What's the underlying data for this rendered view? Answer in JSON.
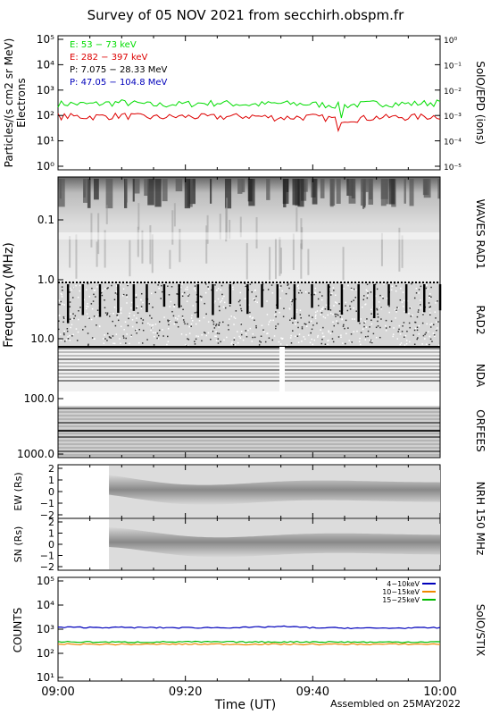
{
  "title": "Survey of 05 NOV 2021 from secchirh.obspm.fr",
  "footer": "Assembled on 25MAY2022",
  "xlabel": "Time (UT)",
  "x_ticks": [
    "09:00",
    "09:20",
    "09:40",
    "10:00"
  ],
  "colors": {
    "green": "#00dd00",
    "red": "#dd0000",
    "blue": "#0000bb",
    "orange": "#ee8800",
    "black": "#000000"
  },
  "chart_data": [
    {
      "panel": "SolO/EPD",
      "type": "line",
      "ylabel": "Particles/(s cm2 sr MeV)",
      "ylabel2": "Electrons",
      "right_title": "SolO/EPD (ions)",
      "yscale": "log",
      "ylim": [
        1,
        100000
      ],
      "y2lim": [
        1e-05,
        1
      ],
      "y_ticks": [
        "10⁰",
        "10¹",
        "10²",
        "10³",
        "10⁴",
        "10⁵"
      ],
      "y2_ticks": [
        "10⁻⁵",
        "10⁻⁴",
        "10⁻³",
        "10⁻²",
        "10⁻¹",
        "10⁰"
      ],
      "legend": [
        {
          "label": "E: 53 − 73 keV",
          "color": "#00dd00"
        },
        {
          "label": "E: 282 − 397 keV",
          "color": "#dd0000"
        },
        {
          "label": "P: 7.075 − 28.33 MeV",
          "color": "#000000"
        },
        {
          "label": "P: 47.05 − 104.8 MeV",
          "color": "#0000bb"
        }
      ],
      "series": [
        {
          "name": "E: 53 − 73 keV",
          "color": "#00dd00",
          "x": [
            0,
            5,
            10,
            15,
            20,
            25,
            30,
            35,
            40,
            45,
            50,
            55,
            60
          ],
          "y": [
            300,
            280,
            330,
            260,
            290,
            320,
            270,
            300,
            280,
            250,
            310,
            290,
            330
          ]
        },
        {
          "name": "E: 282 − 397 keV",
          "color": "#dd0000",
          "x": [
            0,
            5,
            10,
            15,
            20,
            25,
            30,
            35,
            40,
            45,
            50,
            55,
            60
          ],
          "y": [
            95,
            90,
            100,
            85,
            92,
            88,
            96,
            82,
            90,
            70,
            85,
            88,
            95
          ]
        }
      ]
    },
    {
      "panel": "Radio spectrogram",
      "type": "heatmap",
      "ylabel": "Frequency (MHz)",
      "yscale": "log",
      "y_ticks": [
        "0.1",
        "1.0",
        "10.0",
        "100.0",
        "1000.0"
      ],
      "instruments": [
        "WAVES RAD1",
        "RAD2",
        "NDA",
        "ORFEES"
      ]
    },
    {
      "panel": "NRH 150 MHz EW",
      "type": "heatmap",
      "ylabel": "EW (Rs)",
      "ylim": [
        -2,
        2
      ],
      "y_ticks": [
        "2",
        "1",
        "0",
        "−1",
        "−2"
      ],
      "right_title": "NRH 150 MHz",
      "data_start_minutes": 8
    },
    {
      "panel": "NRH 150 MHz SN",
      "type": "heatmap",
      "ylabel": "SN (Rs)",
      "ylim": [
        -2,
        2
      ],
      "y_ticks": [
        "2",
        "1",
        "0",
        "−1",
        "−2"
      ],
      "data_start_minutes": 8
    },
    {
      "panel": "SolO/STIX",
      "type": "line",
      "ylabel": "COUNTS",
      "right_title": "SolO/STIX",
      "yscale": "log",
      "ylim": [
        10,
        100000
      ],
      "y_ticks": [
        "10¹",
        "10²",
        "10³",
        "10⁴",
        "10⁵"
      ],
      "series": [
        {
          "name": "4−10keV",
          "color": "#0000bb",
          "x": [
            0,
            10,
            20,
            30,
            35,
            40,
            50,
            60
          ],
          "y": [
            1200,
            1180,
            1150,
            1180,
            1300,
            1150,
            1100,
            1150
          ]
        },
        {
          "name": "10−15keV",
          "color": "#ee8800",
          "x": [
            0,
            10,
            20,
            30,
            40,
            50,
            60
          ],
          "y": [
            240,
            235,
            240,
            238,
            236,
            238,
            240
          ]
        },
        {
          "name": "15−25keV",
          "color": "#00bb00",
          "x": [
            0,
            10,
            20,
            30,
            40,
            50,
            60
          ],
          "y": [
            300,
            290,
            300,
            295,
            300,
            290,
            300
          ]
        }
      ]
    }
  ]
}
